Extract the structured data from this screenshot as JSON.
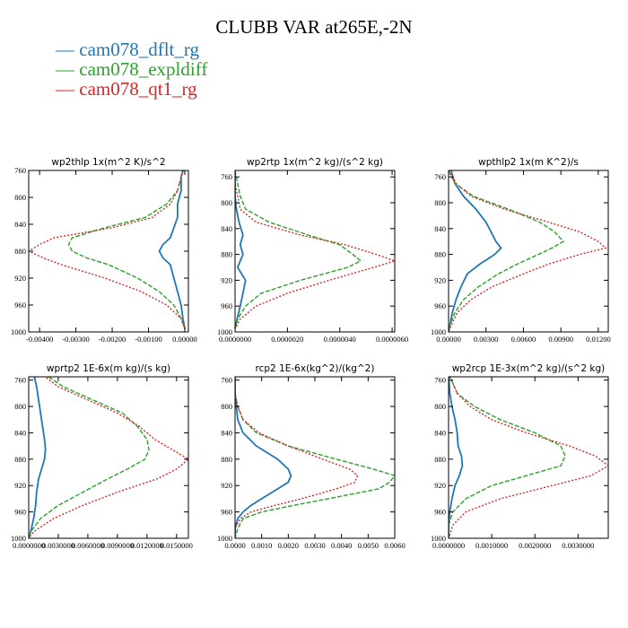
{
  "figure_title": "CLUBB VAR at265E,-2N",
  "legend": [
    {
      "label": "cam078_dflt_rg",
      "color": "#1f77b4"
    },
    {
      "label": "cam078_expldiff",
      "color": "#2ca02c"
    },
    {
      "label": "cam078_qt1_rg",
      "color": "#d62728"
    }
  ],
  "chart_data": [
    {
      "type": "line",
      "title": "wp2thlp   1x(m^2 K)/s^2",
      "xlim": [
        -0.0043,
        0.0001
      ],
      "xticks": [
        "-0.00400",
        "-0.00300",
        "-0.00200",
        "-0.00100",
        "0.00000"
      ],
      "xtick_values": [
        -0.004,
        -0.003,
        -0.002,
        -0.001,
        0.0
      ],
      "ylim": [
        760,
        1000
      ],
      "yticks": [
        760,
        800,
        840,
        880,
        920,
        960,
        1000
      ],
      "y": [
        750,
        770,
        790,
        810,
        830,
        845,
        860,
        870,
        880,
        890,
        900,
        920,
        940,
        960,
        980,
        995
      ],
      "series": [
        {
          "name": "cam078_dflt_rg",
          "values": [
            0.0,
            -0.0001,
            -0.0001,
            -0.0002,
            -0.0002,
            -0.0003,
            -0.0004,
            -0.0006,
            -0.0007,
            -0.0006,
            -0.0004,
            -0.0003,
            -0.0002,
            -0.0001,
            -5e-05,
            0.0
          ]
        },
        {
          "name": "cam078_expldiff",
          "values": [
            0.0,
            -0.0001,
            -0.0002,
            -0.0005,
            -0.0011,
            -0.0022,
            -0.0031,
            -0.0032,
            -0.0031,
            -0.0027,
            -0.0021,
            -0.0013,
            -0.0007,
            -0.0003,
            -0.0001,
            0.0
          ]
        },
        {
          "name": "cam078_qt1_rg",
          "values": [
            0.0,
            -0.0001,
            -0.0002,
            -0.0004,
            -0.0009,
            -0.002,
            -0.0036,
            -0.004,
            -0.0043,
            -0.0039,
            -0.0034,
            -0.0022,
            -0.0012,
            -0.0005,
            -0.0001,
            0.0
          ]
        }
      ]
    },
    {
      "type": "line",
      "title": "wp2rtp   1x(m^2 kg)/(s^2 kg)",
      "xlim": [
        0,
        6.1e-06
      ],
      "xticks": [
        "0.0000000",
        "0.0000020",
        "0.0000040",
        "0.0000060"
      ],
      "xtick_values": [
        0,
        2e-06,
        4e-06,
        6e-06
      ],
      "ylim": [
        750,
        1000
      ],
      "yticks": [
        760,
        800,
        840,
        880,
        920,
        960,
        1000
      ],
      "y": [
        750,
        770,
        790,
        810,
        830,
        850,
        865,
        880,
        890,
        900,
        920,
        940,
        960,
        980,
        995
      ],
      "series": [
        {
          "name": "cam078_dflt_rg",
          "values": [
            0.0,
            0.0,
            0.0,
            5e-08,
            1.5e-07,
            3e-07,
            2e-07,
            3e-07,
            2e-07,
            1e-07,
            4e-07,
            3e-07,
            2e-07,
            8e-08,
            0.0
          ]
        },
        {
          "name": "cam078_expldiff",
          "values": [
            0.0,
            1e-07,
            2e-07,
            4e-07,
            1.3e-06,
            2.8e-06,
            4e-06,
            4.5e-06,
            4.8e-06,
            4.3e-06,
            2.5e-06,
            1e-06,
            4e-07,
            1e-07,
            0.0
          ]
        },
        {
          "name": "cam078_qt1_rg",
          "values": [
            0.0,
            0.0,
            1e-07,
            2e-07,
            8e-07,
            2.5e-06,
            4.2e-06,
            5.4e-06,
            6.1e-06,
            5.3e-06,
            3.6e-06,
            2e-06,
            8e-07,
            2e-07,
            0.0
          ]
        }
      ]
    },
    {
      "type": "line",
      "title": "wpthlp2   1x(m K^2)/s",
      "xlim": [
        0,
        0.0128
      ],
      "xticks": [
        "0.00000",
        "0.00300",
        "0.00600",
        "0.00900",
        "0.01200"
      ],
      "xtick_values": [
        0,
        0.003,
        0.006,
        0.009,
        0.012
      ],
      "ylim": [
        750,
        1000
      ],
      "yticks": [
        760,
        800,
        840,
        880,
        920,
        960,
        1000
      ],
      "y": [
        750,
        770,
        790,
        810,
        830,
        845,
        860,
        870,
        880,
        895,
        910,
        930,
        950,
        970,
        990,
        1000
      ],
      "series": [
        {
          "name": "cam078_dflt_rg",
          "values": [
            0.0002,
            0.0005,
            0.0012,
            0.0022,
            0.003,
            0.0034,
            0.0038,
            0.0042,
            0.0037,
            0.0025,
            0.0015,
            0.001,
            0.0006,
            0.0003,
            0.0001,
            0.0
          ]
        },
        {
          "name": "cam078_expldiff",
          "values": [
            0.0,
            0.0005,
            0.002,
            0.0048,
            0.0073,
            0.0085,
            0.0092,
            0.0083,
            0.0072,
            0.0055,
            0.004,
            0.0024,
            0.0012,
            0.0005,
            0.0001,
            0.0
          ]
        },
        {
          "name": "cam078_qt1_rg",
          "values": [
            0.0,
            0.0006,
            0.0018,
            0.0045,
            0.008,
            0.0105,
            0.012,
            0.0126,
            0.0105,
            0.008,
            0.006,
            0.0035,
            0.0018,
            0.0007,
            0.0002,
            0.0
          ]
        }
      ]
    },
    {
      "type": "line",
      "title": "wprtp2   1E-6x(m kg)/(s kg)",
      "xlim": [
        0,
        0.0162
      ],
      "xticks": [
        "0.0000000",
        "0.0030000",
        "0.0060000",
        "0.0090000",
        "0.0120000",
        "0.0150000"
      ],
      "xtick_values": [
        0,
        0.003,
        0.006,
        0.009,
        0.012,
        0.015
      ],
      "ylim": [
        755,
        1000
      ],
      "yticks": [
        760,
        800,
        840,
        880,
        920,
        960,
        1000
      ],
      "y": [
        750,
        770,
        790,
        810,
        830,
        850,
        865,
        880,
        895,
        910,
        930,
        950,
        970,
        990,
        1000
      ],
      "series": [
        {
          "name": "cam078_dflt_rg",
          "values": [
            0.0005,
            0.0008,
            0.001,
            0.0012,
            0.0014,
            0.0016,
            0.0017,
            0.0016,
            0.0013,
            0.001,
            0.0008,
            0.0007,
            0.0005,
            0.0002,
            0.0
          ]
        },
        {
          "name": "cam078_expldiff",
          "values": [
            0.0015,
            0.0035,
            0.0065,
            0.0095,
            0.011,
            0.012,
            0.0122,
            0.0118,
            0.01,
            0.008,
            0.0055,
            0.003,
            0.0012,
            0.0002,
            0.0
          ]
        },
        {
          "name": "cam078_qt1_rg",
          "values": [
            0.0012,
            0.003,
            0.006,
            0.009,
            0.0112,
            0.0128,
            0.0145,
            0.0162,
            0.015,
            0.013,
            0.009,
            0.0055,
            0.0025,
            0.0005,
            0.0
          ]
        }
      ]
    },
    {
      "type": "line",
      "title": "rcp2   1E-6x(kg^2)/(kg^2)",
      "xlim": [
        0,
        0.006
      ],
      "xticks": [
        "0.0000",
        "0.0010",
        "0.0020",
        "0.0030",
        "0.0040",
        "0.0050",
        "0.0060"
      ],
      "xtick_values": [
        0,
        0.001,
        0.002,
        0.003,
        0.004,
        0.005,
        0.006
      ],
      "ylim": [
        755,
        1000
      ],
      "yticks": [
        760,
        800,
        840,
        880,
        920,
        960,
        1000
      ],
      "y": [
        750,
        780,
        800,
        820,
        840,
        860,
        880,
        895,
        905,
        915,
        925,
        940,
        950,
        960,
        970,
        985,
        1000
      ],
      "series": [
        {
          "name": "cam078_dflt_rg",
          "values": [
            0.0,
            0.0,
            5e-05,
            0.0001,
            0.0003,
            0.0008,
            0.0016,
            0.002,
            0.0021,
            0.002,
            0.0016,
            0.001,
            0.0006,
            0.0003,
            0.0001,
            0.0,
            0.0
          ]
        },
        {
          "name": "cam078_expldiff",
          "values": [
            0.0,
            0.0,
            0.0001,
            0.0003,
            0.0008,
            0.002,
            0.0038,
            0.0052,
            0.006,
            0.0058,
            0.0054,
            0.0035,
            0.0022,
            0.001,
            0.0003,
            0.0001,
            0.0
          ]
        },
        {
          "name": "cam078_qt1_rg",
          "values": [
            0.0,
            0.0,
            0.0001,
            0.0003,
            0.0009,
            0.002,
            0.0033,
            0.0043,
            0.0046,
            0.0045,
            0.0038,
            0.0025,
            0.0015,
            0.0006,
            0.0002,
            0.0,
            0.0
          ]
        }
      ]
    },
    {
      "type": "line",
      "title": "wp2rcp   1E-3x(m^2 kg)/(s^2 kg)",
      "xlim": [
        0,
        0.0037
      ],
      "xticks": [
        "0.0000000",
        "0.0010000",
        "0.0020000",
        "0.0030000"
      ],
      "xtick_values": [
        0,
        0.001,
        0.002,
        0.003
      ],
      "ylim": [
        755,
        1000
      ],
      "yticks": [
        760,
        800,
        840,
        880,
        920,
        960,
        1000
      ],
      "y": [
        750,
        780,
        800,
        820,
        840,
        860,
        875,
        890,
        905,
        920,
        940,
        960,
        980,
        1000
      ],
      "series": [
        {
          "name": "cam078_dflt_rg",
          "values": [
            0.0,
            3e-05,
            8e-05,
            0.00015,
            0.0002,
            0.00022,
            0.0003,
            0.00032,
            0.00025,
            0.00015,
            8e-05,
            3e-05,
            0.0,
            0.0
          ]
        },
        {
          "name": "cam078_expldiff",
          "values": [
            0.0,
            0.0002,
            0.0006,
            0.0012,
            0.002,
            0.0026,
            0.0027,
            0.0026,
            0.0018,
            0.001,
            0.0004,
            0.0001,
            0.0,
            0.0
          ]
        },
        {
          "name": "cam078_qt1_rg",
          "values": [
            0.0,
            0.0002,
            0.0005,
            0.001,
            0.0018,
            0.0028,
            0.0034,
            0.0037,
            0.0033,
            0.0024,
            0.0012,
            0.0004,
            0.0001,
            0.0
          ]
        }
      ]
    }
  ]
}
